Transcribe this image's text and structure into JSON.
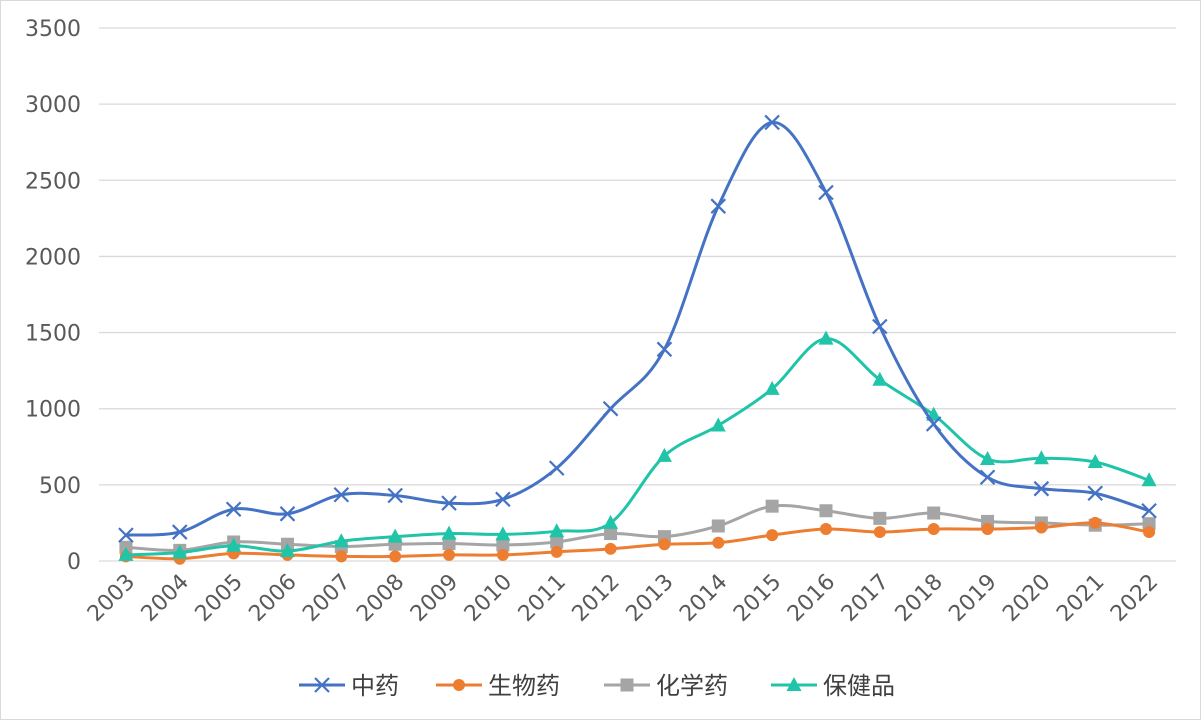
{
  "chart_data": {
    "type": "line",
    "title": "",
    "xlabel": "",
    "ylabel": "",
    "ylim": [
      0,
      3500
    ],
    "yticks": [
      0,
      500,
      1000,
      1500,
      2000,
      2500,
      3000,
      3500
    ],
    "grid": "horizontal",
    "legend_position": "bottom",
    "categories": [
      "2003",
      "2004",
      "2005",
      "2006",
      "2007",
      "2008",
      "2009",
      "2010",
      "2011",
      "2012",
      "2013",
      "2014",
      "2015",
      "2016",
      "2017",
      "2018",
      "2019",
      "2020",
      "2021",
      "2022"
    ],
    "series": [
      {
        "name": "中药",
        "color": "#4472c4",
        "marker": "x",
        "values": [
          170,
          190,
          340,
          310,
          435,
          430,
          380,
          405,
          610,
          1000,
          1390,
          2330,
          2880,
          2420,
          1540,
          900,
          550,
          475,
          445,
          330
        ]
      },
      {
        "name": "生物药",
        "color": "#ed7d31",
        "marker": "circle",
        "values": [
          30,
          15,
          50,
          40,
          30,
          30,
          40,
          40,
          60,
          80,
          110,
          120,
          170,
          210,
          190,
          210,
          210,
          220,
          250,
          190
        ]
      },
      {
        "name": "化学药",
        "color": "#a5a5a5",
        "marker": "square",
        "values": [
          90,
          70,
          125,
          110,
          95,
          110,
          115,
          105,
          125,
          180,
          160,
          230,
          360,
          330,
          280,
          315,
          260,
          250,
          235,
          245
        ]
      },
      {
        "name": "保健品",
        "color": "#20c4a8",
        "marker": "triangle",
        "values": [
          40,
          55,
          100,
          65,
          130,
          160,
          180,
          175,
          195,
          250,
          690,
          890,
          1130,
          1460,
          1190,
          960,
          670,
          675,
          650,
          530
        ]
      }
    ]
  }
}
